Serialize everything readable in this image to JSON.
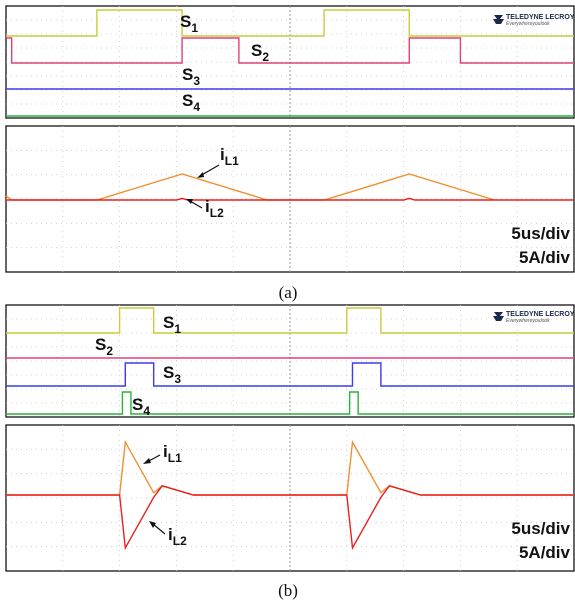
{
  "brand": {
    "name": "TELEDYNE LECROY",
    "tagline": "Everywhereyoulook"
  },
  "colors": {
    "S1": "#c8cc3e",
    "S2": "#e0407c",
    "S3": "#3c3ce8",
    "S4": "#28b43c",
    "iL1": "#f09030",
    "iL2": "#e82020",
    "grid": "#c8c8c8"
  },
  "chart_data": [
    {
      "type": "line",
      "panel": "a",
      "caption": "(a)",
      "scale": {
        "time": "5us/div",
        "current": "5A/div"
      },
      "gate_signals": [
        {
          "name": "S1",
          "label": "S",
          "sub": "1",
          "high_intervals_div": [
            [
              1.6,
              3.1
            ],
            [
              5.6,
              7.1
            ]
          ]
        },
        {
          "name": "S2",
          "label": "S",
          "sub": "2",
          "high_intervals_div": [
            [
              0.0,
              0.1
            ],
            [
              3.1,
              4.1
            ],
            [
              7.1,
              8.0
            ]
          ]
        },
        {
          "name": "S3",
          "label": "S",
          "sub": "3",
          "high_intervals_div": []
        },
        {
          "name": "S4",
          "label": "S",
          "sub": "4",
          "high_intervals_div": []
        }
      ],
      "series": [
        {
          "name": "iL1",
          "label": "i",
          "sub": "L1",
          "x_div": [
            0,
            0.1,
            1.6,
            3.1,
            4.6,
            5.6,
            7.1,
            8.6
          ],
          "y_div": [
            0.2,
            0,
            0,
            1.3,
            0,
            0,
            1.3,
            0
          ]
        },
        {
          "name": "iL2",
          "label": "i",
          "sub": "L2",
          "x_div": [
            0,
            3.0,
            3.1,
            3.2,
            7.0,
            7.1,
            7.2,
            10
          ],
          "y_div": [
            0,
            0,
            0.08,
            0,
            0,
            0.08,
            0,
            0
          ]
        }
      ]
    },
    {
      "type": "line",
      "panel": "b",
      "caption": "(b)",
      "scale": {
        "time": "5us/div",
        "current": "5A/div"
      },
      "gate_signals": [
        {
          "name": "S1",
          "label": "S",
          "sub": "1",
          "high_intervals_div": [
            [
              2.0,
              2.6
            ],
            [
              6.0,
              6.6
            ]
          ]
        },
        {
          "name": "S2",
          "label": "S",
          "sub": "2",
          "high_intervals_div": []
        },
        {
          "name": "S3",
          "label": "S",
          "sub": "3",
          "high_intervals_div": [
            [
              2.1,
              2.6
            ],
            [
              6.1,
              6.6
            ]
          ]
        },
        {
          "name": "S4",
          "label": "S",
          "sub": "4",
          "high_intervals_div": [
            [
              2.05,
              2.2
            ],
            [
              6.05,
              6.2
            ]
          ]
        }
      ],
      "series": [
        {
          "name": "iL1",
          "label": "i",
          "sub": "L1",
          "x_div": [
            0,
            2.0,
            2.1,
            2.6,
            2.75,
            3.3,
            6.0,
            6.1,
            6.6,
            6.75,
            7.3,
            10
          ],
          "y_div": [
            0,
            0,
            2.3,
            0.1,
            0.4,
            0,
            0,
            2.3,
            0.1,
            0.4,
            0,
            0
          ]
        },
        {
          "name": "iL2",
          "label": "i",
          "sub": "L2",
          "x_div": [
            0,
            2.0,
            2.1,
            2.6,
            2.75,
            3.3,
            6.0,
            6.1,
            6.6,
            6.75,
            7.3,
            10
          ],
          "y_div": [
            0,
            0,
            -2.3,
            -0.1,
            0.4,
            0,
            0,
            -2.3,
            -0.1,
            0.4,
            0,
            0
          ]
        }
      ]
    }
  ]
}
